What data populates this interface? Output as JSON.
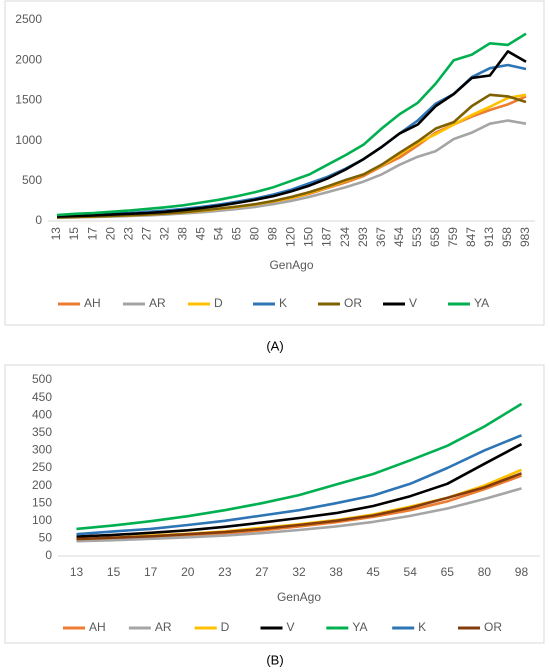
{
  "chart_data": [
    {
      "type": "line",
      "caption": "(A)",
      "xlabel": "GenAgo",
      "grid": false,
      "categories": [
        "13",
        "15",
        "17",
        "20",
        "23",
        "27",
        "32",
        "38",
        "45",
        "54",
        "65",
        "80",
        "98",
        "120",
        "150",
        "187",
        "234",
        "293",
        "367",
        "454",
        "553",
        "658",
        "759",
        "847",
        "913",
        "958",
        "983"
      ],
      "ylim": [
        0,
        2500
      ],
      "yticks": [
        0,
        500,
        1000,
        1500,
        2000,
        2500
      ],
      "series": [
        {
          "name": "AH",
          "color": "#ED7D31",
          "values": [
            45,
            50,
            55,
            62,
            70,
            80,
            92,
            107,
            125,
            148,
            172,
            200,
            240,
            285,
            340,
            410,
            480,
            560,
            680,
            790,
            940,
            1100,
            1200,
            1300,
            1380,
            1450,
            1550
          ]
        },
        {
          "name": "AR",
          "color": "#A5A5A5",
          "values": [
            40,
            45,
            50,
            55,
            62,
            70,
            80,
            93,
            108,
            128,
            150,
            175,
            210,
            250,
            300,
            360,
            420,
            490,
            580,
            700,
            800,
            870,
            1020,
            1100,
            1210,
            1250,
            1210
          ]
        },
        {
          "name": "D",
          "color": "#FFC000",
          "values": [
            45,
            50,
            55,
            62,
            70,
            80,
            92,
            107,
            125,
            150,
            175,
            205,
            245,
            290,
            350,
            420,
            500,
            580,
            690,
            830,
            970,
            1080,
            1200,
            1320,
            1420,
            1530,
            1570
          ]
        },
        {
          "name": "K",
          "color": "#2E75B6",
          "values": [
            60,
            70,
            80,
            90,
            100,
            115,
            130,
            150,
            175,
            205,
            240,
            280,
            330,
            390,
            470,
            550,
            650,
            770,
            920,
            1090,
            1250,
            1460,
            1580,
            1790,
            1900,
            1940,
            1890
          ]
        },
        {
          "name": "OR",
          "color": "#7F6000",
          "values": [
            45,
            50,
            57,
            63,
            72,
            82,
            95,
            110,
            130,
            155,
            180,
            210,
            250,
            300,
            360,
            430,
            510,
            580,
            700,
            850,
            990,
            1150,
            1230,
            1430,
            1570,
            1550,
            1480
          ]
        },
        {
          "name": "V",
          "color": "#000000",
          "values": [
            55,
            62,
            70,
            80,
            90,
            100,
            115,
            135,
            160,
            190,
            225,
            265,
            310,
            370,
            440,
            530,
            640,
            770,
            920,
            1090,
            1200,
            1430,
            1580,
            1780,
            1810,
            2110,
            1980
          ]
        },
        {
          "name": "YA",
          "color": "#00B050",
          "values": [
            75,
            90,
            100,
            115,
            130,
            150,
            170,
            195,
            230,
            265,
            310,
            360,
            420,
            500,
            580,
            700,
            820,
            950,
            1150,
            1330,
            1470,
            1710,
            2000,
            2070,
            2210,
            2190,
            2330
          ]
        }
      ]
    },
    {
      "type": "line",
      "caption": "(B)",
      "xlabel": "GenAgo",
      "grid": false,
      "categories": [
        "13",
        "15",
        "17",
        "20",
        "23",
        "27",
        "32",
        "38",
        "45",
        "54",
        "65",
        "80",
        "98"
      ],
      "ylim": [
        0,
        500
      ],
      "yticks": [
        0,
        50,
        100,
        150,
        200,
        250,
        300,
        350,
        400,
        450,
        500
      ],
      "series": [
        {
          "name": "AH",
          "color": "#ED7D31",
          "values": [
            45,
            49,
            53,
            58,
            64,
            73,
            84,
            96,
            111,
            130,
            155,
            190,
            228
          ]
        },
        {
          "name": "AR",
          "color": "#A5A5A5",
          "values": [
            42,
            45,
            49,
            53,
            58,
            65,
            74,
            84,
            97,
            114,
            135,
            162,
            192
          ]
        },
        {
          "name": "D",
          "color": "#FFC000",
          "values": [
            48,
            52,
            58,
            63,
            70,
            80,
            90,
            102,
            118,
            140,
            165,
            200,
            245
          ]
        },
        {
          "name": "V",
          "color": "#000000",
          "values": [
            55,
            60,
            66,
            73,
            83,
            95,
            108,
            122,
            142,
            170,
            205,
            262,
            318
          ]
        },
        {
          "name": "YA",
          "color": "#00B050",
          "values": [
            77,
            87,
            99,
            113,
            130,
            150,
            173,
            203,
            233,
            272,
            313,
            368,
            432
          ]
        },
        {
          "name": "K",
          "color": "#2E75B6",
          "values": [
            62,
            70,
            77,
            88,
            100,
            115,
            130,
            150,
            172,
            205,
            250,
            300,
            343
          ]
        },
        {
          "name": "OR",
          "color": "#843C0C",
          "values": [
            48,
            52,
            56,
            62,
            68,
            77,
            88,
            100,
            115,
            137,
            165,
            195,
            235
          ]
        }
      ]
    }
  ]
}
